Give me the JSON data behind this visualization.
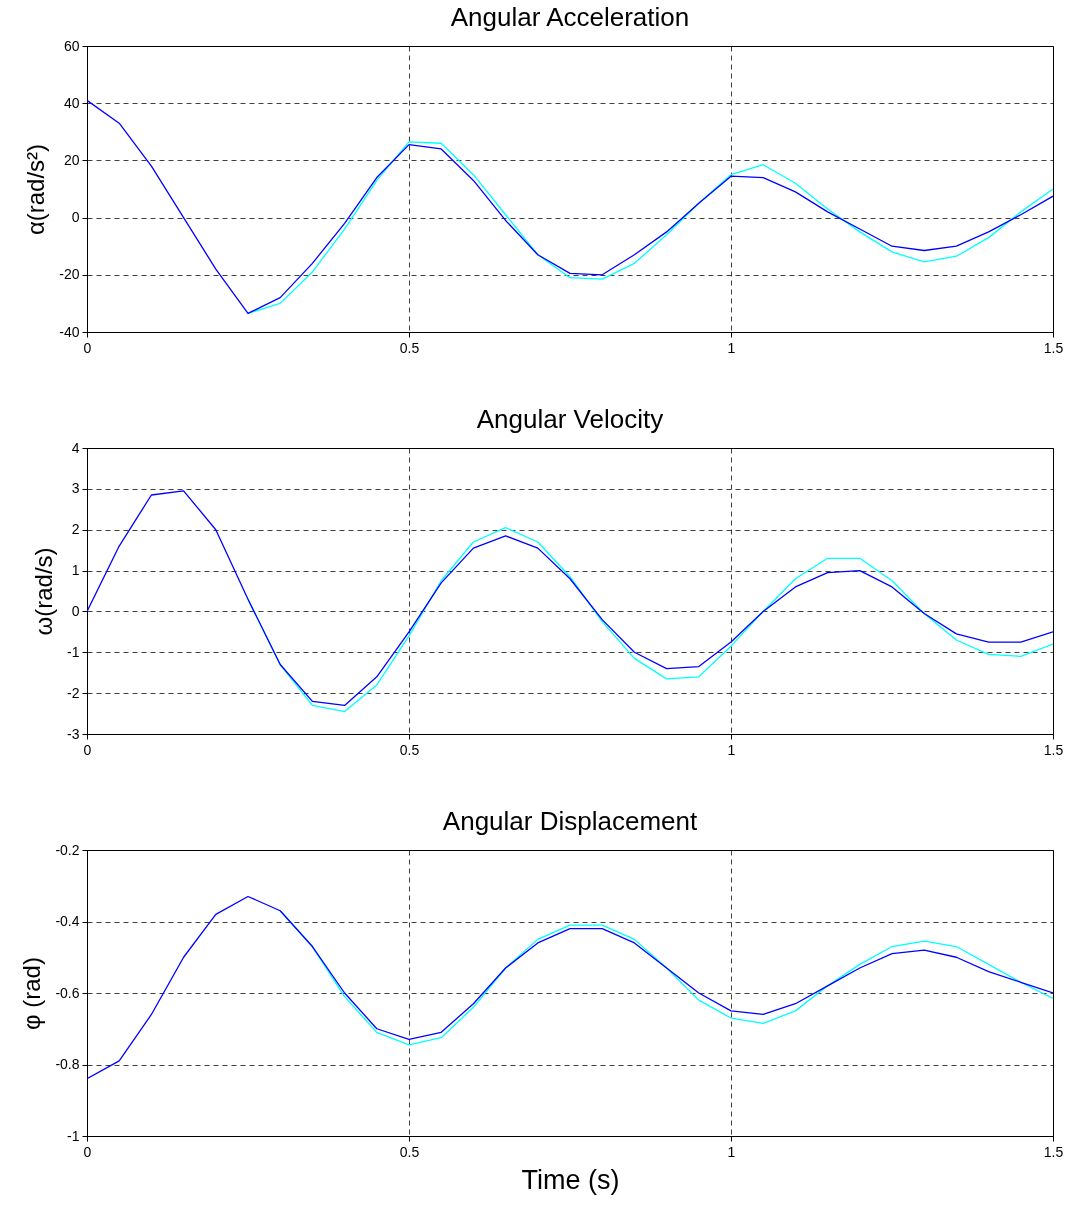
{
  "chart_data": [
    {
      "type": "line",
      "title": "Angular Acceleration",
      "ylabel": "α(rad/s²)",
      "x": [
        0,
        0.05,
        0.1,
        0.15,
        0.2,
        0.25,
        0.3,
        0.35,
        0.4,
        0.45,
        0.5,
        0.55,
        0.6,
        0.65,
        0.7,
        0.75,
        0.8,
        0.85,
        0.9,
        0.95,
        1,
        1.05,
        1.1,
        1.15,
        1.2,
        1.25,
        1.3,
        1.35,
        1.4,
        1.45,
        1.5
      ],
      "xlim": [
        0,
        1.5
      ],
      "xticks": [
        0,
        0.5,
        1,
        1.5
      ],
      "ylim": [
        -40,
        60
      ],
      "yticks": [
        -40,
        -20,
        0,
        20,
        40,
        60
      ],
      "grid": true,
      "series": [
        {
          "color": "#00ffff",
          "values": [
            null,
            null,
            null,
            null,
            null,
            -33.5,
            -30,
            -19,
            -4,
            13,
            26.5,
            26,
            15,
            1,
            -13,
            -21,
            -21.5,
            -16,
            -6,
            5,
            15,
            18.5,
            12,
            3,
            -5,
            -12,
            -15.5,
            -13.5,
            -7,
            2,
            10
          ]
        },
        {
          "color": "#0000ff",
          "values": [
            41,
            33,
            18,
            0,
            -18,
            -33.5,
            -28,
            -16,
            -2,
            14,
            25.5,
            24,
            13,
            -1,
            -13,
            -19.5,
            -20,
            -13,
            -5,
            5,
            14.5,
            14,
            9,
            2,
            -4,
            -10,
            -11.5,
            -10,
            -5,
            1,
            7.5
          ]
        }
      ]
    },
    {
      "type": "line",
      "title": "Angular Velocity",
      "ylabel": "ω(rad/s)",
      "x": [
        0,
        0.05,
        0.1,
        0.15,
        0.2,
        0.25,
        0.3,
        0.35,
        0.4,
        0.45,
        0.5,
        0.55,
        0.6,
        0.65,
        0.7,
        0.75,
        0.8,
        0.85,
        0.9,
        0.95,
        1,
        1.05,
        1.1,
        1.15,
        1.2,
        1.25,
        1.3,
        1.35,
        1.4,
        1.45,
        1.5
      ],
      "xlim": [
        0,
        1.5
      ],
      "xticks": [
        0,
        0.5,
        1,
        1.5
      ],
      "ylim": [
        -3,
        4
      ],
      "yticks": [
        -3,
        -2,
        -1,
        0,
        1,
        2,
        3,
        4
      ],
      "grid": true,
      "series": [
        {
          "color": "#00ffff",
          "values": [
            null,
            null,
            null,
            null,
            null,
            0.3,
            -1.3,
            -2.3,
            -2.45,
            -1.8,
            -0.6,
            0.75,
            1.7,
            2.05,
            1.7,
            0.85,
            -0.25,
            -1.15,
            -1.65,
            -1.6,
            -0.85,
            0,
            0.8,
            1.3,
            1.3,
            0.75,
            -0.05,
            -0.7,
            -1.05,
            -1.1,
            -0.8
          ]
        },
        {
          "color": "#0000ff",
          "values": [
            0,
            1.6,
            2.85,
            2.95,
            2.0,
            0.3,
            -1.3,
            -2.2,
            -2.3,
            -1.6,
            -0.5,
            0.7,
            1.55,
            1.85,
            1.55,
            0.8,
            -0.2,
            -1.0,
            -1.4,
            -1.35,
            -0.75,
            0,
            0.6,
            0.95,
            1.0,
            0.6,
            -0.05,
            -0.55,
            -0.75,
            -0.75,
            -0.5
          ]
        }
      ]
    },
    {
      "type": "line",
      "title": "Angular Displacement",
      "xlabel": "Time (s)",
      "ylabel": "φ (rad)",
      "x": [
        0,
        0.05,
        0.1,
        0.15,
        0.2,
        0.25,
        0.3,
        0.35,
        0.4,
        0.45,
        0.5,
        0.55,
        0.6,
        0.65,
        0.7,
        0.75,
        0.8,
        0.85,
        0.9,
        0.95,
        1,
        1.05,
        1.1,
        1.15,
        1.2,
        1.25,
        1.3,
        1.35,
        1.4,
        1.45,
        1.5
      ],
      "xlim": [
        0,
        1.5
      ],
      "xticks": [
        0,
        0.5,
        1,
        1.5
      ],
      "ylim": [
        -1,
        -0.2
      ],
      "yticks": [
        -1,
        -0.8,
        -0.6,
        -0.4,
        -0.2
      ],
      "grid": true,
      "series": [
        {
          "color": "#00ffff",
          "values": [
            null,
            null,
            null,
            null,
            null,
            null,
            -0.37,
            -0.47,
            -0.61,
            -0.71,
            -0.745,
            -0.725,
            -0.64,
            -0.53,
            -0.45,
            -0.41,
            -0.41,
            -0.45,
            -0.53,
            -0.62,
            -0.67,
            -0.685,
            -0.65,
            -0.58,
            -0.52,
            -0.47,
            -0.455,
            -0.47,
            -0.52,
            -0.57,
            -0.615
          ]
        },
        {
          "color": "#0000ff",
          "values": [
            -0.84,
            -0.79,
            -0.66,
            -0.5,
            -0.38,
            -0.33,
            -0.37,
            -0.47,
            -0.6,
            -0.7,
            -0.73,
            -0.71,
            -0.63,
            -0.53,
            -0.46,
            -0.42,
            -0.42,
            -0.46,
            -0.53,
            -0.6,
            -0.65,
            -0.66,
            -0.63,
            -0.58,
            -0.53,
            -0.49,
            -0.48,
            -0.5,
            -0.54,
            -0.57,
            -0.6
          ]
        }
      ]
    }
  ]
}
